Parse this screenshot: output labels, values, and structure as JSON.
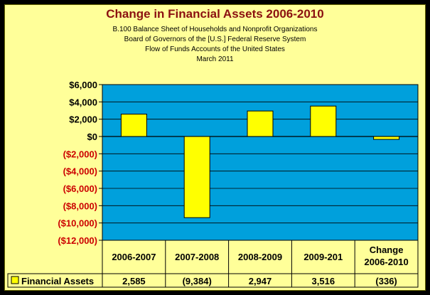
{
  "chart_data": {
    "type": "bar",
    "title": "Change in Financial Assets 2006-2010",
    "subtitle_lines": [
      "B.100 Balance Sheet of Households and Nonprofit Organizations",
      "Board of Governors of the [U.S.] Federal Reserve System",
      "Flow of Funds Accounts of the United States",
      "March 2011"
    ],
    "categories": [
      "2006-2007",
      "2007-2008",
      "2008-2009",
      "2009-201",
      "Change 2006-2010"
    ],
    "series": [
      {
        "name": "Financial Assets",
        "values": [
          2585,
          -9384,
          2947,
          3516,
          -336
        ],
        "table_labels": [
          "2,585",
          "(9,384)",
          "2,947",
          "3,516",
          "(336)"
        ],
        "color": "#ffff00"
      }
    ],
    "ylim": [
      -12000,
      6000
    ],
    "yticks": [
      6000,
      4000,
      2000,
      0,
      -2000,
      -4000,
      -6000,
      -8000,
      -10000,
      -12000
    ],
    "ytick_labels": [
      "$6,000",
      "$4,000",
      "$2,000",
      "$0",
      "($2,000)",
      "($4,000)",
      "($6,000)",
      "($8,000)",
      "($10,000)",
      "($12,000)"
    ],
    "grid": true,
    "legend": "data-table",
    "colors": {
      "plot_background": "#00a0dc",
      "panel_background": "#ffff99",
      "negative_label": "#cc0000",
      "title": "#8b1010"
    }
  }
}
